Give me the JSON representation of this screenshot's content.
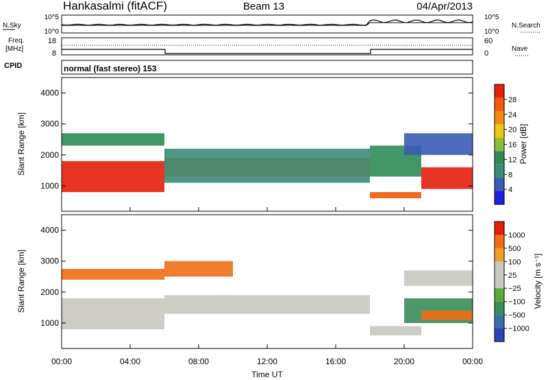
{
  "header": {
    "station": "Hankasalmi (fitACF)",
    "beam": "Beam 13",
    "date": "04/Apr/2013"
  },
  "noise_panel": {
    "left_label": "N.Sky",
    "left_ticks": [
      "10^5",
      "10^0"
    ],
    "right_label": "N.Search",
    "right_ticks": [
      "10^5",
      "10^0"
    ]
  },
  "freq_panel": {
    "left_label_1": "Freq.",
    "left_label_2": "[MHz]",
    "left_ticks": [
      "18",
      "8"
    ],
    "right_label": "Nave",
    "right_ticks": [
      "60",
      "0"
    ]
  },
  "cpid": {
    "label": "CPID",
    "value": "normal (fast stereo) 153"
  },
  "colors": {
    "power": [
      "#1e1ee6",
      "#3c5ab4",
      "#3c8c78",
      "#2e8b57",
      "#8cbe3c",
      "#f0c814",
      "#f08c14",
      "#f05a0a",
      "#e61e0a"
    ],
    "velocity": [
      "#2846b4",
      "#3c6eaa",
      "#3c8c5a",
      "#5aaa3c",
      "#c8c8c0",
      "#c8c8c0",
      "#f0a028",
      "#f06e14",
      "#e61e0a"
    ]
  },
  "chart_data": [
    {
      "type": "heatmap",
      "name": "power",
      "ylabel": "Slant Range [km]",
      "ylim": [
        180,
        4500
      ],
      "yticks": [
        "1000",
        "2000",
        "3000",
        "4000"
      ],
      "colorbar_label": "Power [dB]",
      "colorbar_ticks": [
        "4",
        "8",
        "12",
        "16",
        "20",
        "24",
        "28"
      ],
      "bands": [
        {
          "x": [
            0,
            6
          ],
          "range": [
            800,
            1800
          ],
          "level": 8
        },
        {
          "x": [
            0,
            6
          ],
          "range": [
            2300,
            2700
          ],
          "level": 3
        },
        {
          "x": [
            6,
            18
          ],
          "range": [
            1300,
            1900
          ],
          "level": 7
        },
        {
          "x": [
            6,
            18
          ],
          "range": [
            1100,
            2200
          ],
          "level": 2
        },
        {
          "x": [
            18,
            21
          ],
          "range": [
            600,
            800
          ],
          "level": 7
        },
        {
          "x": [
            18,
            21
          ],
          "range": [
            1300,
            2300
          ],
          "level": 3
        },
        {
          "x": [
            21,
            24
          ],
          "range": [
            900,
            1600
          ],
          "level": 8
        },
        {
          "x": [
            20,
            24
          ],
          "range": [
            2000,
            2700
          ],
          "level": 1
        }
      ]
    },
    {
      "type": "heatmap",
      "name": "velocity",
      "xlabel": "Time UT",
      "ylabel": "Slant Range [km]",
      "ylim": [
        180,
        4500
      ],
      "yticks": [
        "1000",
        "2000",
        "3000",
        "4000"
      ],
      "xticks": [
        "00:00",
        "04:00",
        "08:00",
        "12:00",
        "16:00",
        "20:00",
        "00:00"
      ],
      "colorbar_label": "Velocity [m s⁻¹]",
      "colorbar_ticks": [
        "1000",
        "500",
        "100",
        "25",
        "−25",
        "−100",
        "−500",
        "−1000"
      ],
      "bands": [
        {
          "x": [
            0,
            6
          ],
          "range": [
            800,
            1800
          ],
          "level": 5
        },
        {
          "x": [
            0,
            6
          ],
          "range": [
            2400,
            2750
          ],
          "level": 7
        },
        {
          "x": [
            6,
            18
          ],
          "range": [
            1300,
            1900
          ],
          "level": 4
        },
        {
          "x": [
            6,
            10
          ],
          "range": [
            2500,
            3000
          ],
          "level": 7
        },
        {
          "x": [
            18,
            21
          ],
          "range": [
            600,
            900
          ],
          "level": 4
        },
        {
          "x": [
            20,
            24
          ],
          "range": [
            1000,
            1800
          ],
          "level": 2
        },
        {
          "x": [
            21,
            24
          ],
          "range": [
            1100,
            1400
          ],
          "level": 7
        },
        {
          "x": [
            20,
            24
          ],
          "range": [
            2200,
            2700
          ],
          "level": 4
        }
      ]
    }
  ]
}
